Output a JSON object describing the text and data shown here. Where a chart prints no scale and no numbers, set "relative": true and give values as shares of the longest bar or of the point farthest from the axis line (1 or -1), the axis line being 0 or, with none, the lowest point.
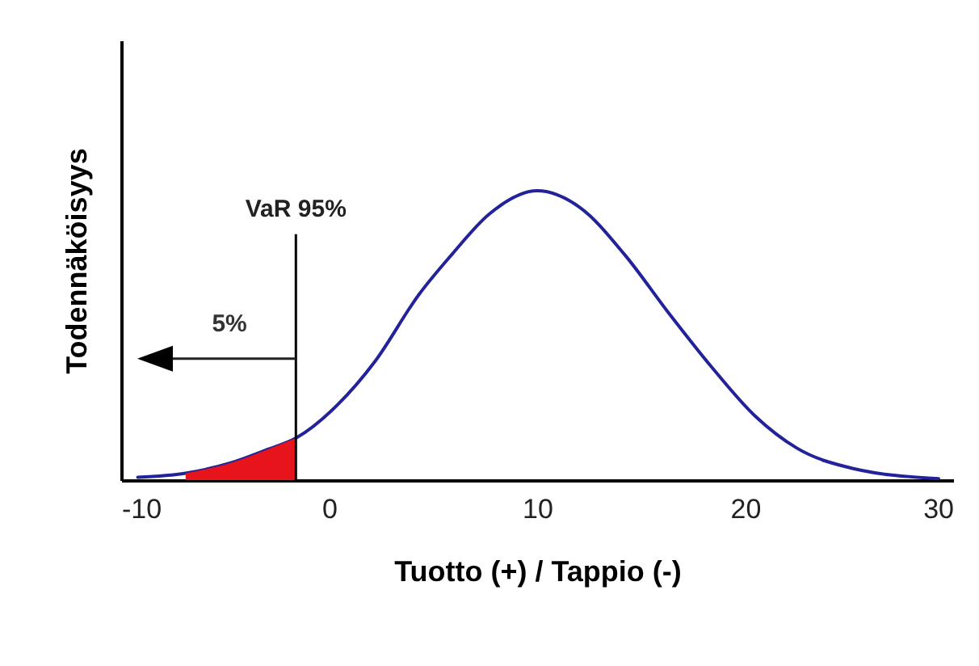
{
  "chart_data": {
    "type": "line",
    "xlabel": "Tuotto (+) / Tappio (-)",
    "ylabel": "Todennäköisyys",
    "relative": true,
    "xlim": [
      -10,
      30
    ],
    "xticks": [
      -10,
      0,
      10,
      20,
      30
    ],
    "grid": false,
    "x": [
      -9.2,
      -6.9,
      -4.8,
      -3.0,
      -1.6,
      0.4,
      2.2,
      4.3,
      5.9,
      7.7,
      10,
      12.1,
      14.2,
      16.3,
      18.4,
      20.5,
      22.5,
      25.2,
      29.3
    ],
    "series": [
      {
        "color": "#22229a",
        "values": [
          0.01,
          0.024,
          0.058,
          0.105,
          0.145,
          0.26,
          0.41,
          0.64,
          0.78,
          0.92,
          1.0,
          0.94,
          0.78,
          0.58,
          0.39,
          0.22,
          0.11,
          0.04,
          0.005
        ]
      },
      {
        "type": "area",
        "color": "#e8141c",
        "x": [
          -6.9,
          -4.8,
          -3.0,
          -1.6
        ],
        "values": [
          0.024,
          0.058,
          0.105,
          0.145
        ]
      }
    ],
    "ref_lines": [
      {
        "axis": "x",
        "value": -1.6,
        "label": "VaR 95%",
        "color": "#000000"
      }
    ],
    "annotations": [
      "5%"
    ]
  }
}
